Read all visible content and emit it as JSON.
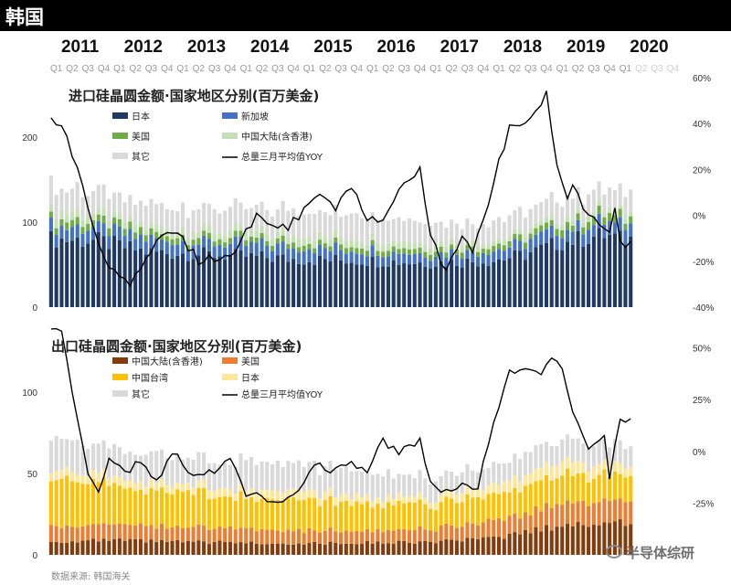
{
  "header": {
    "title": "韩国"
  },
  "footer": {
    "source": "数据来源: 韩国海关",
    "watermark": "半导体综研"
  },
  "years": [
    "2011",
    "2012",
    "2013",
    "2014",
    "2015",
    "2016",
    "2017",
    "2018",
    "2019",
    "2020"
  ],
  "quarters": [
    "Q1",
    "Q2",
    "Q3",
    "Q4"
  ],
  "colors": {
    "import": [
      "#1f3864",
      "#4472c4",
      "#70ad47",
      "#c5e0b4",
      "#d9d9d9"
    ],
    "export": [
      "#843c0c",
      "#ed7d31",
      "#ffc000",
      "#ffe699",
      "#d9d9d9"
    ],
    "line": "#000000"
  },
  "chart_data": [
    {
      "type": "bar",
      "stacked": true,
      "title": "进口硅晶圆金额·国家地区分别(百万美金)",
      "x_period": "monthly, 2011-01 to 2020-03",
      "y_left": {
        "ticks": [
          "0",
          "100",
          "200"
        ],
        "ylim": [
          0,
          270
        ]
      },
      "y_right": {
        "ticks": [
          "-40%",
          "-20%",
          "0%",
          "20%",
          "40%",
          "60%"
        ],
        "ylim": [
          -0.4,
          0.6
        ]
      },
      "legend": [
        "日本",
        "新加坡",
        "美国",
        "中国大陆(含香港)",
        "其它",
        "总量三月平均值YOY"
      ],
      "series_nodes": [
        {
          "name": "日本",
          "x": [
            0,
            9,
            18,
            30,
            48,
            60,
            72,
            84,
            90,
            96,
            102,
            105,
            108
          ],
          "y": [
            80,
            78,
            65,
            62,
            56,
            55,
            52,
            55,
            62,
            75,
            82,
            85,
            80
          ]
        },
        {
          "name": "新加坡",
          "x": [
            0,
            12,
            24,
            48,
            60,
            72,
            84,
            96,
            108
          ],
          "y": [
            15,
            15,
            14,
            14,
            12,
            11,
            12,
            15,
            15
          ]
        },
        {
          "name": "美国",
          "x": [
            0,
            12,
            24,
            48,
            72,
            84,
            96,
            108
          ],
          "y": [
            8,
            8,
            7,
            6,
            6,
            6,
            8,
            9
          ]
        },
        {
          "name": "中国大陆(含香港)",
          "x": [
            0,
            12,
            24,
            48,
            60,
            72,
            84,
            96,
            108
          ],
          "y": [
            10,
            8,
            8,
            9,
            8,
            7,
            6,
            6,
            6
          ]
        },
        {
          "name": "其它",
          "x": [
            0,
            12,
            24,
            36,
            48,
            60,
            72,
            84,
            96,
            108
          ],
          "y": [
            30,
            25,
            25,
            27,
            30,
            28,
            25,
            22,
            25,
            23
          ]
        }
      ],
      "yoy_nodes": {
        "name": "总量三月平均值YOY",
        "x": [
          0,
          2,
          5,
          9,
          12,
          15,
          20,
          24,
          28,
          32,
          35,
          39,
          42,
          45,
          48,
          51,
          54,
          57,
          60,
          63,
          66,
          70,
          72,
          75,
          78,
          80,
          82,
          84,
          87,
          90,
          93,
          94,
          96,
          98,
          99,
          102,
          104,
          106,
          107,
          108
        ],
        "y": [
          42,
          40,
          20,
          -13,
          -25,
          -30,
          -12,
          -7,
          -20,
          -18,
          -15,
          0,
          -5,
          -5,
          2,
          10,
          2,
          13,
          -2,
          -3,
          13,
          20,
          -10,
          -24,
          -10,
          -15,
          -3,
          15,
          38,
          42,
          48,
          53,
          23,
          8,
          14,
          0,
          -5,
          -8,
          3,
          -12
        ]
      }
    },
    {
      "type": "bar",
      "stacked": true,
      "title": "出口硅晶圆金额·国家地区分别(百万美金)",
      "x_period": "monthly, 2011-01 to 2020-03",
      "y_left": {
        "ticks": [
          "0",
          "50",
          "100"
        ],
        "ylim": [
          0,
          140
        ]
      },
      "y_right": {
        "ticks": [
          "-25%",
          "0%",
          "25%",
          "50%"
        ],
        "ylim": [
          -0.5,
          0.6
        ]
      },
      "legend": [
        "中国大陆(含香港)",
        "美国",
        "中国台湾",
        "日本",
        "其它",
        "总量三月平均值YOY"
      ],
      "series_nodes": [
        {
          "name": "中国大陆(含香港)",
          "x": [
            0,
            12,
            24,
            48,
            72,
            84,
            96,
            108
          ],
          "y": [
            8,
            9,
            8,
            7,
            8,
            10,
            18,
            20
          ]
        },
        {
          "name": "美国",
          "x": [
            0,
            12,
            24,
            48,
            72,
            84,
            96,
            108
          ],
          "y": [
            10,
            10,
            9,
            8,
            8,
            10,
            13,
            14
          ]
        },
        {
          "name": "中国台湾",
          "x": [
            0,
            6,
            12,
            24,
            48,
            72,
            84,
            96,
            108
          ],
          "y": [
            27,
            28,
            24,
            21,
            19,
            15,
            16,
            18,
            15
          ]
        },
        {
          "name": "日本",
          "x": [
            0,
            12,
            24,
            48,
            72,
            84,
            96,
            108
          ],
          "y": [
            5,
            5,
            5,
            5,
            4,
            6,
            8,
            6
          ]
        },
        {
          "name": "其它",
          "x": [
            0,
            12,
            24,
            48,
            72,
            84,
            96,
            108
          ],
          "y": [
            20,
            18,
            17,
            17,
            12,
            12,
            14,
            13
          ]
        }
      ],
      "yoy_nodes": {
        "name": "总量三月平均值YOY",
        "x": [
          0,
          2,
          4,
          7,
          9,
          11,
          14,
          17,
          20,
          23,
          26,
          30,
          34,
          37,
          40,
          44,
          47,
          50,
          53,
          56,
          60,
          63,
          66,
          70,
          72,
          75,
          78,
          81,
          84,
          87,
          90,
          93,
          95,
          97,
          99,
          102,
          105,
          106,
          108
        ],
        "y": [
          60,
          58,
          30,
          -10,
          -18,
          -5,
          -10,
          -5,
          -15,
          0,
          -10,
          -10,
          -5,
          -20,
          -23,
          -25,
          -20,
          -5,
          -10,
          -5,
          -10,
          5,
          0,
          5,
          -15,
          -20,
          -15,
          -18,
          15,
          38,
          40,
          37,
          47,
          40,
          20,
          0,
          8,
          -12,
          15
        ]
      }
    }
  ]
}
